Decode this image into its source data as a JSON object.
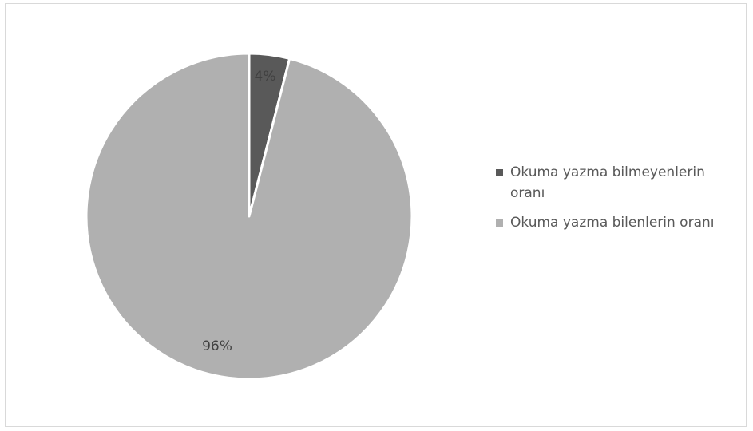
{
  "chart_data": {
    "type": "pie",
    "title": "",
    "categories": [
      "Okuma yazma bilmeyenlerin oranı",
      "Okuma yazma bilenlerin oranı"
    ],
    "values": [
      4,
      96
    ],
    "data_labels": [
      "4%",
      "96%"
    ],
    "colors": [
      "#595959",
      "#b0b0b0"
    ],
    "legend_position": "right"
  }
}
